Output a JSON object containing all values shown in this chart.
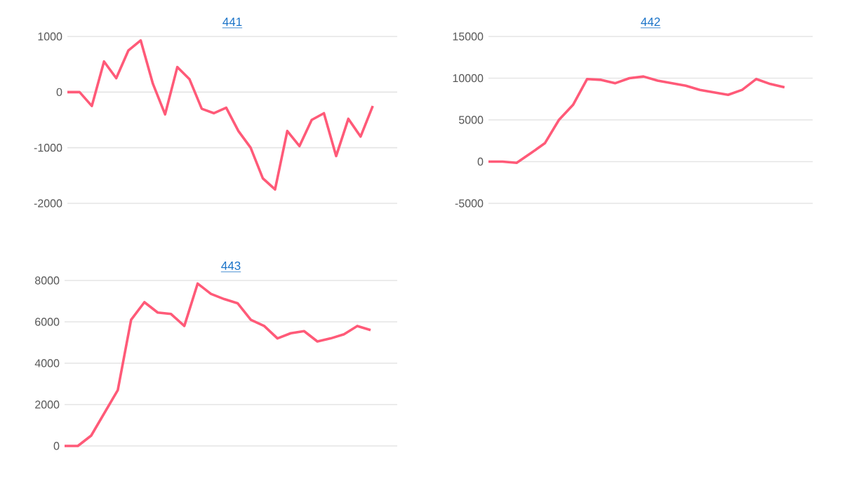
{
  "chart_data": [
    {
      "type": "line",
      "title": "441",
      "categories": [
        null,
        null,
        null,
        null,
        null,
        null,
        null,
        null,
        null,
        null,
        null,
        null,
        null,
        null,
        null,
        null,
        null,
        null,
        null,
        null,
        null,
        null,
        null,
        null,
        null,
        null
      ],
      "series": [
        {
          "color": "#ff5a78",
          "values": [
            0,
            0,
            -250,
            550,
            250,
            750,
            930,
            150,
            -400,
            450,
            230,
            -300,
            -380,
            -280,
            -700,
            -1000,
            -1550,
            -1750,
            -700,
            -970,
            -500,
            -380,
            -1150,
            -480,
            -800,
            -250
          ]
        }
      ],
      "ylim": [
        -2000,
        1000
      ],
      "yticks": [
        -2000,
        -1000,
        0,
        1000
      ],
      "grid": "y",
      "tick_labels": "y",
      "marker": "none"
    },
    {
      "type": "line",
      "title": "442",
      "categories": [
        null,
        null,
        null,
        null,
        null,
        null,
        null,
        null,
        null,
        null,
        null,
        null,
        null,
        null,
        null,
        null,
        null,
        null,
        null,
        null,
        null,
        null
      ],
      "series": [
        {
          "color": "#ff5a78",
          "values": [
            0,
            0,
            -150,
            1000,
            2200,
            5000,
            6800,
            9900,
            9800,
            9400,
            10000,
            10200,
            9700,
            9400,
            9100,
            8600,
            8300,
            8000,
            8600,
            9900,
            9300,
            8900
          ]
        }
      ],
      "ylim": [
        -5000,
        15000
      ],
      "yticks": [
        -5000,
        0,
        5000,
        10000,
        15000
      ],
      "grid": "y",
      "tick_labels": "y",
      "marker": "none"
    },
    {
      "type": "line",
      "title": "443",
      "categories": [
        null,
        null,
        null,
        null,
        null,
        null,
        null,
        null,
        null,
        null,
        null,
        null,
        null,
        null,
        null,
        null,
        null,
        null,
        null,
        null,
        null,
        null,
        null,
        null
      ],
      "series": [
        {
          "color": "#ff5a78",
          "values": [
            0,
            0,
            500,
            1600,
            2700,
            6100,
            6950,
            6450,
            6380,
            5800,
            7850,
            7350,
            7100,
            6900,
            6100,
            5800,
            5200,
            5450,
            5550,
            5050,
            5200,
            5400,
            5800,
            5600
          ]
        }
      ],
      "ylim": [
        0,
        8000
      ],
      "yticks": [
        0,
        2000,
        4000,
        6000,
        8000
      ],
      "grid": "y",
      "tick_labels": "y",
      "marker": "none"
    }
  ]
}
